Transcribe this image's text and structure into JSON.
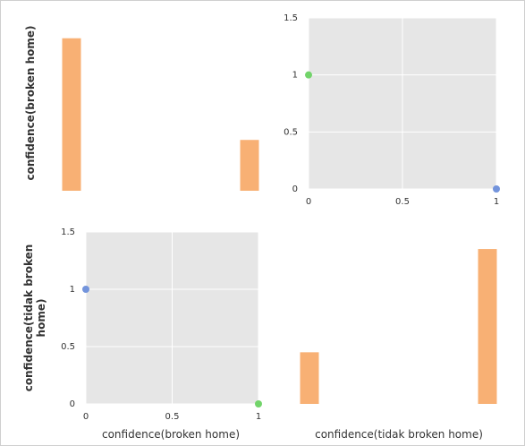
{
  "chart_data": {
    "type": "scatter-matrix",
    "colors": {
      "hist": "#f8b074",
      "point_green": "#72d46a",
      "point_blue": "#7394dc",
      "panel_bg": "#e6e6e6",
      "grid": "#ffffff"
    },
    "variables": [
      "confidence(broken home)",
      "confidence(tidak broken home)"
    ],
    "row_labels": [
      "confidence(broken home)",
      "confidence(tidak broken home)"
    ],
    "col_labels": [
      "confidence(broken home)",
      "confidence(tidak broken home)"
    ],
    "panels": {
      "hist_top_left": {
        "variable": "confidence(broken home)",
        "bins": [
          {
            "x": 0,
            "count": 3
          },
          {
            "x": 1,
            "count": 1
          }
        ]
      },
      "scatter_top_right": {
        "xlim": [
          0,
          1
        ],
        "ylim": [
          0,
          1.5
        ],
        "xticks": [
          "0",
          "0.5",
          "1"
        ],
        "yticks": [
          "0",
          "0.5",
          "1",
          "1.5"
        ],
        "points": [
          {
            "x": 0,
            "y": 1,
            "color": "green"
          },
          {
            "x": 1,
            "y": 0,
            "color": "blue"
          }
        ]
      },
      "scatter_bottom_left": {
        "xlim": [
          0,
          1
        ],
        "ylim": [
          0,
          1.5
        ],
        "xticks": [
          "0",
          "0.5",
          "1"
        ],
        "yticks": [
          "0",
          "0.5",
          "1",
          "1.5"
        ],
        "points": [
          {
            "x": 0,
            "y": 1,
            "color": "blue"
          },
          {
            "x": 1,
            "y": 0,
            "color": "green"
          }
        ]
      },
      "hist_bottom_right": {
        "variable": "confidence(tidak broken home)",
        "bins": [
          {
            "x": 0,
            "count": 1
          },
          {
            "x": 1,
            "count": 3
          }
        ]
      }
    }
  }
}
